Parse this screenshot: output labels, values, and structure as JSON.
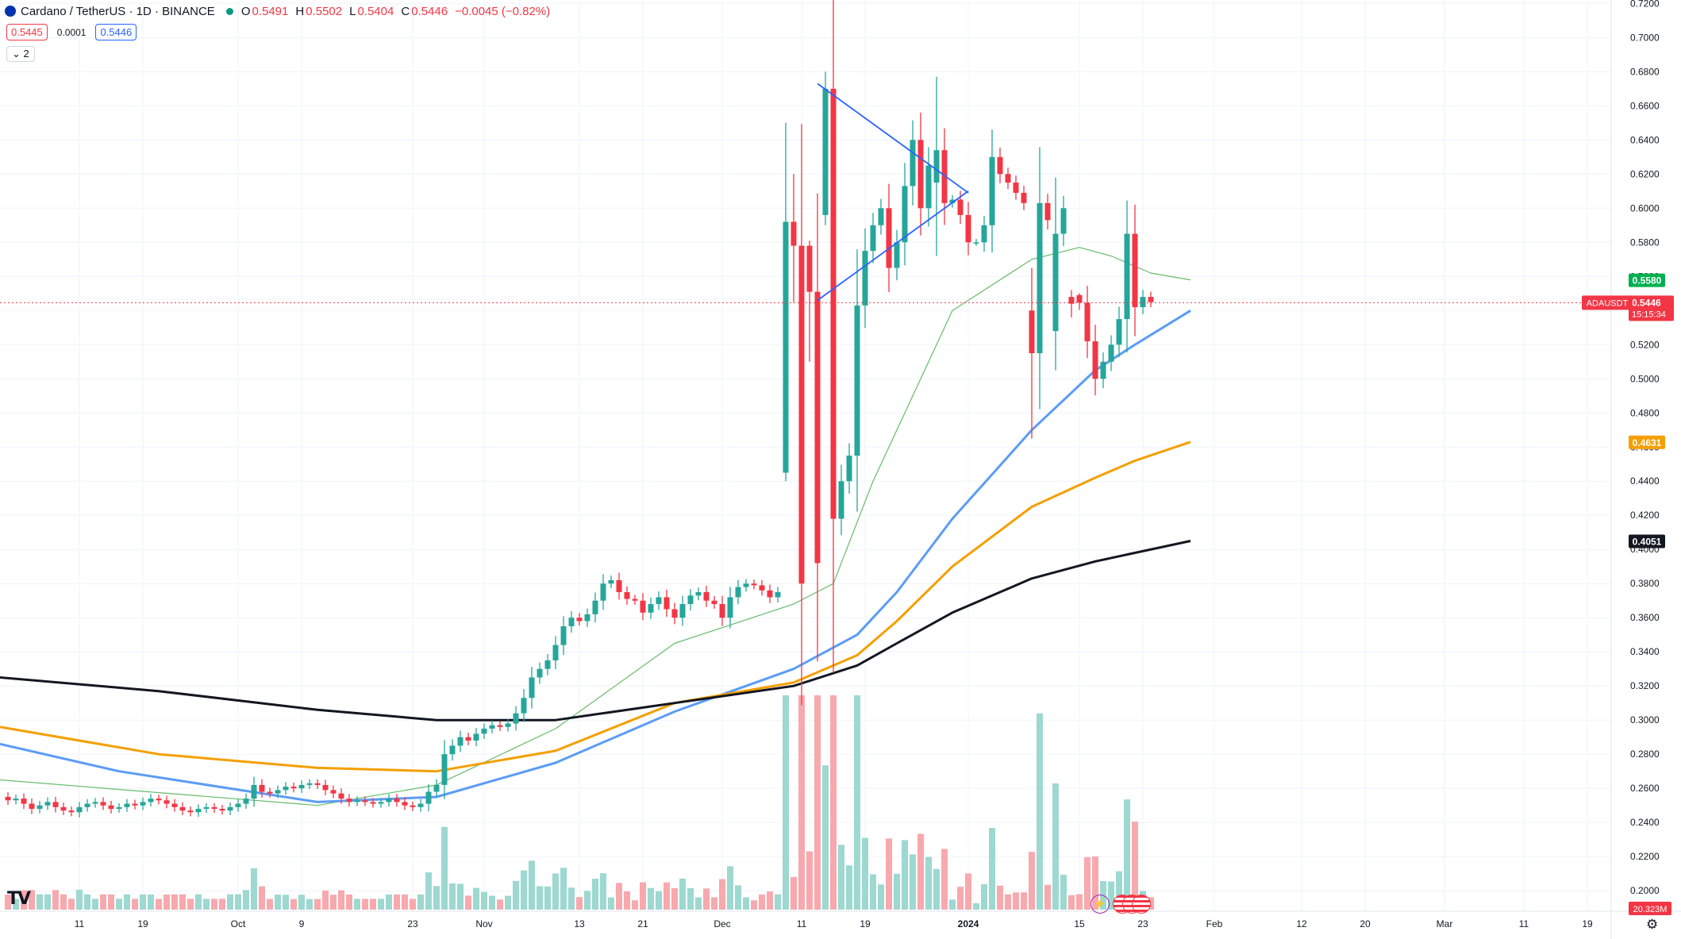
{
  "header": {
    "symbol_title": "Cardano / TetherUS · 1D · BINANCE",
    "open_label": "O",
    "open": "0.5491",
    "high_label": "H",
    "high": "0.5502",
    "low_label": "L",
    "low": "0.5404",
    "close_label": "C",
    "close": "0.5446",
    "change": "−0.0045 (−0.82%)",
    "sell_price": "0.5445",
    "spread": "0.0001",
    "buy_price": "0.5446",
    "indicators_toggle": "⌄ 2"
  },
  "colors": {
    "up": "#26a69a",
    "down": "#f23645",
    "up_volume": "#9dd8d1",
    "down_volume": "#f7a9ae",
    "ma_thin": "#66bb6a",
    "ma_blue": "#5b9cf6",
    "ma_orange": "#f59f00",
    "ma_black": "#131722",
    "trendline": "#2962ff",
    "grid": "#f0f3fa"
  },
  "chart_data": {
    "type": "candlestick",
    "pair": "ADAUSDT",
    "y_axis": {
      "ylim": [
        0.188,
        0.722
      ],
      "ticks": [
        "0.7200",
        "0.7000",
        "0.6800",
        "0.6600",
        "0.6400",
        "0.6200",
        "0.6000",
        "0.5800",
        "0.5600",
        "0.5400",
        "0.5200",
        "0.5000",
        "0.4800",
        "0.4600",
        "0.4400",
        "0.4200",
        "0.4000",
        "0.3800",
        "0.3600",
        "0.3400",
        "0.3200",
        "0.3000",
        "0.2800",
        "0.2600",
        "0.2400",
        "0.2200",
        "0.2000"
      ]
    },
    "x_axis": {
      "first_date": "2023-09-01",
      "last_date": "2024-03-22",
      "ticks": [
        {
          "date": "2023-09-11",
          "label": "11"
        },
        {
          "date": "2023-09-19",
          "label": "19"
        },
        {
          "date": "2023-10-01",
          "label": "Oct"
        },
        {
          "date": "2023-10-09",
          "label": "9"
        },
        {
          "date": "2023-10-23",
          "label": "23"
        },
        {
          "date": "2023-11-01",
          "label": "Nov"
        },
        {
          "date": "2023-11-13",
          "label": "13"
        },
        {
          "date": "2023-11-21",
          "label": "21"
        },
        {
          "date": "2023-12-01",
          "label": "Dec"
        },
        {
          "date": "2023-12-11",
          "label": "11"
        },
        {
          "date": "2023-12-19",
          "label": "19"
        },
        {
          "date": "2024-01-01",
          "label": "2024"
        },
        {
          "date": "2024-01-15",
          "label": "15"
        },
        {
          "date": "2024-01-23",
          "label": "23"
        },
        {
          "date": "2024-02-01",
          "label": "Feb"
        },
        {
          "date": "2024-02-12",
          "label": "12"
        },
        {
          "date": "2024-02-20",
          "label": "20"
        },
        {
          "date": "2024-03-01",
          "label": "Mar"
        },
        {
          "date": "2024-03-11",
          "label": "11"
        },
        {
          "date": "2024-03-19",
          "label": "19"
        }
      ]
    },
    "close_series_start": "2023-09-02",
    "closes": [
      0.253,
      0.254,
      0.251,
      0.248,
      0.25,
      0.252,
      0.249,
      0.247,
      0.246,
      0.249,
      0.251,
      0.252,
      0.25,
      0.248,
      0.249,
      0.251,
      0.25,
      0.252,
      0.254,
      0.253,
      0.251,
      0.249,
      0.247,
      0.246,
      0.248,
      0.249,
      0.248,
      0.247,
      0.249,
      0.251,
      0.254,
      0.262,
      0.258,
      0.257,
      0.259,
      0.261,
      0.26,
      0.262,
      0.263,
      0.262,
      0.259,
      0.257,
      0.254,
      0.252,
      0.253,
      0.252,
      0.251,
      0.252,
      0.254,
      0.252,
      0.25,
      0.249,
      0.251,
      0.258,
      0.262,
      0.28,
      0.285,
      0.29,
      0.288,
      0.292,
      0.295,
      0.297,
      0.296,
      0.298,
      0.304,
      0.313,
      0.325,
      0.33,
      0.335,
      0.344,
      0.355,
      0.36,
      0.358,
      0.362,
      0.37,
      0.38,
      0.382,
      0.375,
      0.371,
      0.37,
      0.363,
      0.368,
      0.372,
      0.365,
      0.36,
      0.368,
      0.373,
      0.375,
      0.37,
      0.368,
      0.36,
      0.372,
      0.378,
      0.38,
      0.379,
      0.376,
      0.372,
      0.375,
      0.372,
      0.377,
      0.38,
      0.382,
      0.392,
      0.405,
      0.418,
      0.44,
      0.455,
      0.543,
      0.575,
      0.59,
      0.6,
      0.565,
      0.58,
      0.613,
      0.64,
      0.6,
      0.625,
      0.63,
      0.603,
      0.605,
      0.596,
      0.58,
      0.58,
      0.59,
      0.63,
      0.62,
      0.615,
      0.609,
      0.603,
      0.6,
      0.603,
      0.593,
      0.608,
      0.6,
      0.557,
      0.535,
      0.522,
      0.5,
      0.51,
      0.52,
      0.535,
      0.585,
      0.542,
      0.548,
      0.545
    ],
    "candle_samples": [
      {
        "date": "2023-12-09",
        "open": 0.445,
        "high": 0.65,
        "low": 0.44,
        "close": 0.592
      },
      {
        "date": "2023-12-10",
        "open": 0.592,
        "high": 0.62,
        "low": 0.545,
        "close": 0.578
      },
      {
        "date": "2023-12-12",
        "open": 0.578,
        "high": 0.581,
        "low": 0.51,
        "close": 0.551
      },
      {
        "date": "2023-12-14",
        "open": 0.596,
        "high": 0.68,
        "low": 0.59,
        "close": 0.67
      },
      {
        "date": "2023-12-28",
        "open": 0.615,
        "high": 0.677,
        "low": 0.572,
        "close": 0.634
      },
      {
        "date": "2024-01-09",
        "open": 0.54,
        "high": 0.565,
        "low": 0.465,
        "close": 0.515
      },
      {
        "date": "2024-01-12",
        "open": 0.528,
        "high": 0.618,
        "low": 0.505,
        "close": 0.585
      },
      {
        "date": "2024-01-14",
        "open": 0.548,
        "high": 0.552,
        "low": 0.536,
        "close": 0.544
      },
      {
        "date": "2024-01-15",
        "open": 0.5491,
        "high": 0.5502,
        "low": 0.5404,
        "close": 0.5446
      }
    ],
    "volume_label": "20.323M",
    "moving_averages": [
      {
        "color": "ma_thin",
        "current": "0.5580",
        "points": [
          [
            0,
            0.265
          ],
          [
            40,
            0.25
          ],
          [
            55,
            0.262
          ],
          [
            70,
            0.295
          ],
          [
            85,
            0.345
          ],
          [
            100,
            0.368
          ],
          [
            105,
            0.38
          ],
          [
            110,
            0.44
          ],
          [
            120,
            0.54
          ],
          [
            130,
            0.57
          ],
          [
            136,
            0.577
          ],
          [
            140,
            0.572
          ],
          [
            145,
            0.562
          ],
          [
            150,
            0.558
          ]
        ]
      },
      {
        "color": "ma_blue",
        "current": "0.5407",
        "points": [
          [
            0,
            0.286
          ],
          [
            15,
            0.27
          ],
          [
            40,
            0.252
          ],
          [
            55,
            0.255
          ],
          [
            70,
            0.275
          ],
          [
            85,
            0.305
          ],
          [
            100,
            0.33
          ],
          [
            108,
            0.35
          ],
          [
            113,
            0.375
          ],
          [
            120,
            0.418
          ],
          [
            130,
            0.47
          ],
          [
            138,
            0.505
          ],
          [
            143,
            0.52
          ],
          [
            150,
            0.54
          ]
        ]
      },
      {
        "color": "ma_orange",
        "current": "0.4631",
        "points": [
          [
            0,
            0.296
          ],
          [
            20,
            0.28
          ],
          [
            40,
            0.272
          ],
          [
            55,
            0.27
          ],
          [
            70,
            0.282
          ],
          [
            85,
            0.31
          ],
          [
            100,
            0.322
          ],
          [
            108,
            0.338
          ],
          [
            113,
            0.358
          ],
          [
            120,
            0.39
          ],
          [
            130,
            0.425
          ],
          [
            138,
            0.442
          ],
          [
            143,
            0.452
          ],
          [
            150,
            0.463
          ]
        ]
      },
      {
        "color": "ma_black",
        "current": "0.4051",
        "points": [
          [
            0,
            0.325
          ],
          [
            20,
            0.317
          ],
          [
            40,
            0.306
          ],
          [
            55,
            0.3
          ],
          [
            70,
            0.3
          ],
          [
            85,
            0.31
          ],
          [
            100,
            0.32
          ],
          [
            108,
            0.332
          ],
          [
            113,
            0.345
          ],
          [
            120,
            0.363
          ],
          [
            130,
            0.383
          ],
          [
            138,
            0.393
          ],
          [
            143,
            0.398
          ],
          [
            150,
            0.405
          ]
        ]
      }
    ],
    "triangle_lines": [
      {
        "from": {
          "date": "2023-12-13",
          "value": 0.673
        },
        "to": {
          "date": "2024-01-01",
          "value": 0.609
        }
      },
      {
        "from": {
          "date": "2023-12-13",
          "value": 0.546
        },
        "to": {
          "date": "2024-01-01",
          "value": 0.61
        }
      }
    ],
    "price_marker": {
      "label": "ADAUSDT",
      "value": "0.5446",
      "countdown": "15:15:34"
    }
  }
}
